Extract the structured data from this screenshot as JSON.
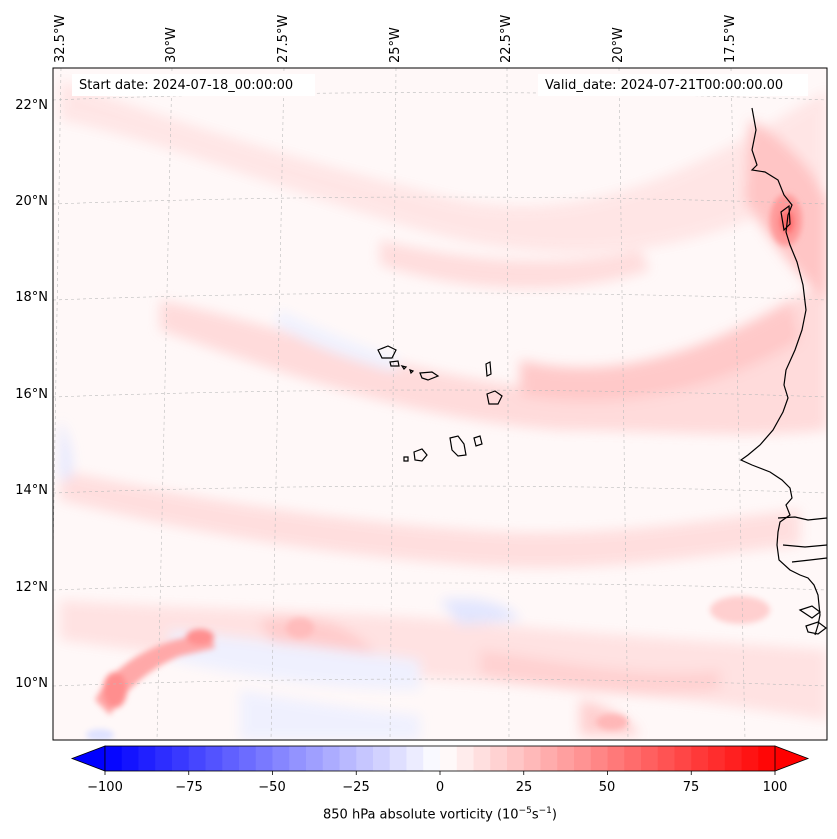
{
  "map": {
    "start_date_text": "Start date: 2024-07-18_00:00:00",
    "valid_date_text": "Valid_date: 2024-07-21T00:00:00.00",
    "lon_labels": [
      "32.5°W",
      "30°W",
      "27.5°W",
      "25°W",
      "22.5°W",
      "20°W",
      "17.5°W"
    ],
    "lat_labels": [
      "22°N",
      "20°N",
      "18°N",
      "16°N",
      "14°N",
      "12°N",
      "10°N"
    ],
    "extent": {
      "lon_min": -33,
      "lon_max": -16,
      "lat_min": 8.9,
      "lat_max": 22.8
    },
    "features": [
      {
        "name": "Cape Verde islands",
        "type": "coastline"
      },
      {
        "name": "West African coastline",
        "type": "coastline"
      }
    ],
    "colors": {
      "negative": "#0000ff",
      "zero": "#ffffff",
      "positive": "#ff0000",
      "gridline": "#bbbbbb",
      "coastline": "#000000"
    }
  },
  "colorbar": {
    "label_prefix": "850 hPa absolute vorticity (10",
    "label_exp1": "−5",
    "label_mid": "s",
    "label_exp2": "−1",
    "label_suffix": ")",
    "ticks": [
      "−100",
      "−75",
      "−50",
      "−25",
      "0",
      "25",
      "50",
      "75",
      "100"
    ],
    "range": [
      -100,
      100
    ],
    "colormap": "bwr"
  }
}
